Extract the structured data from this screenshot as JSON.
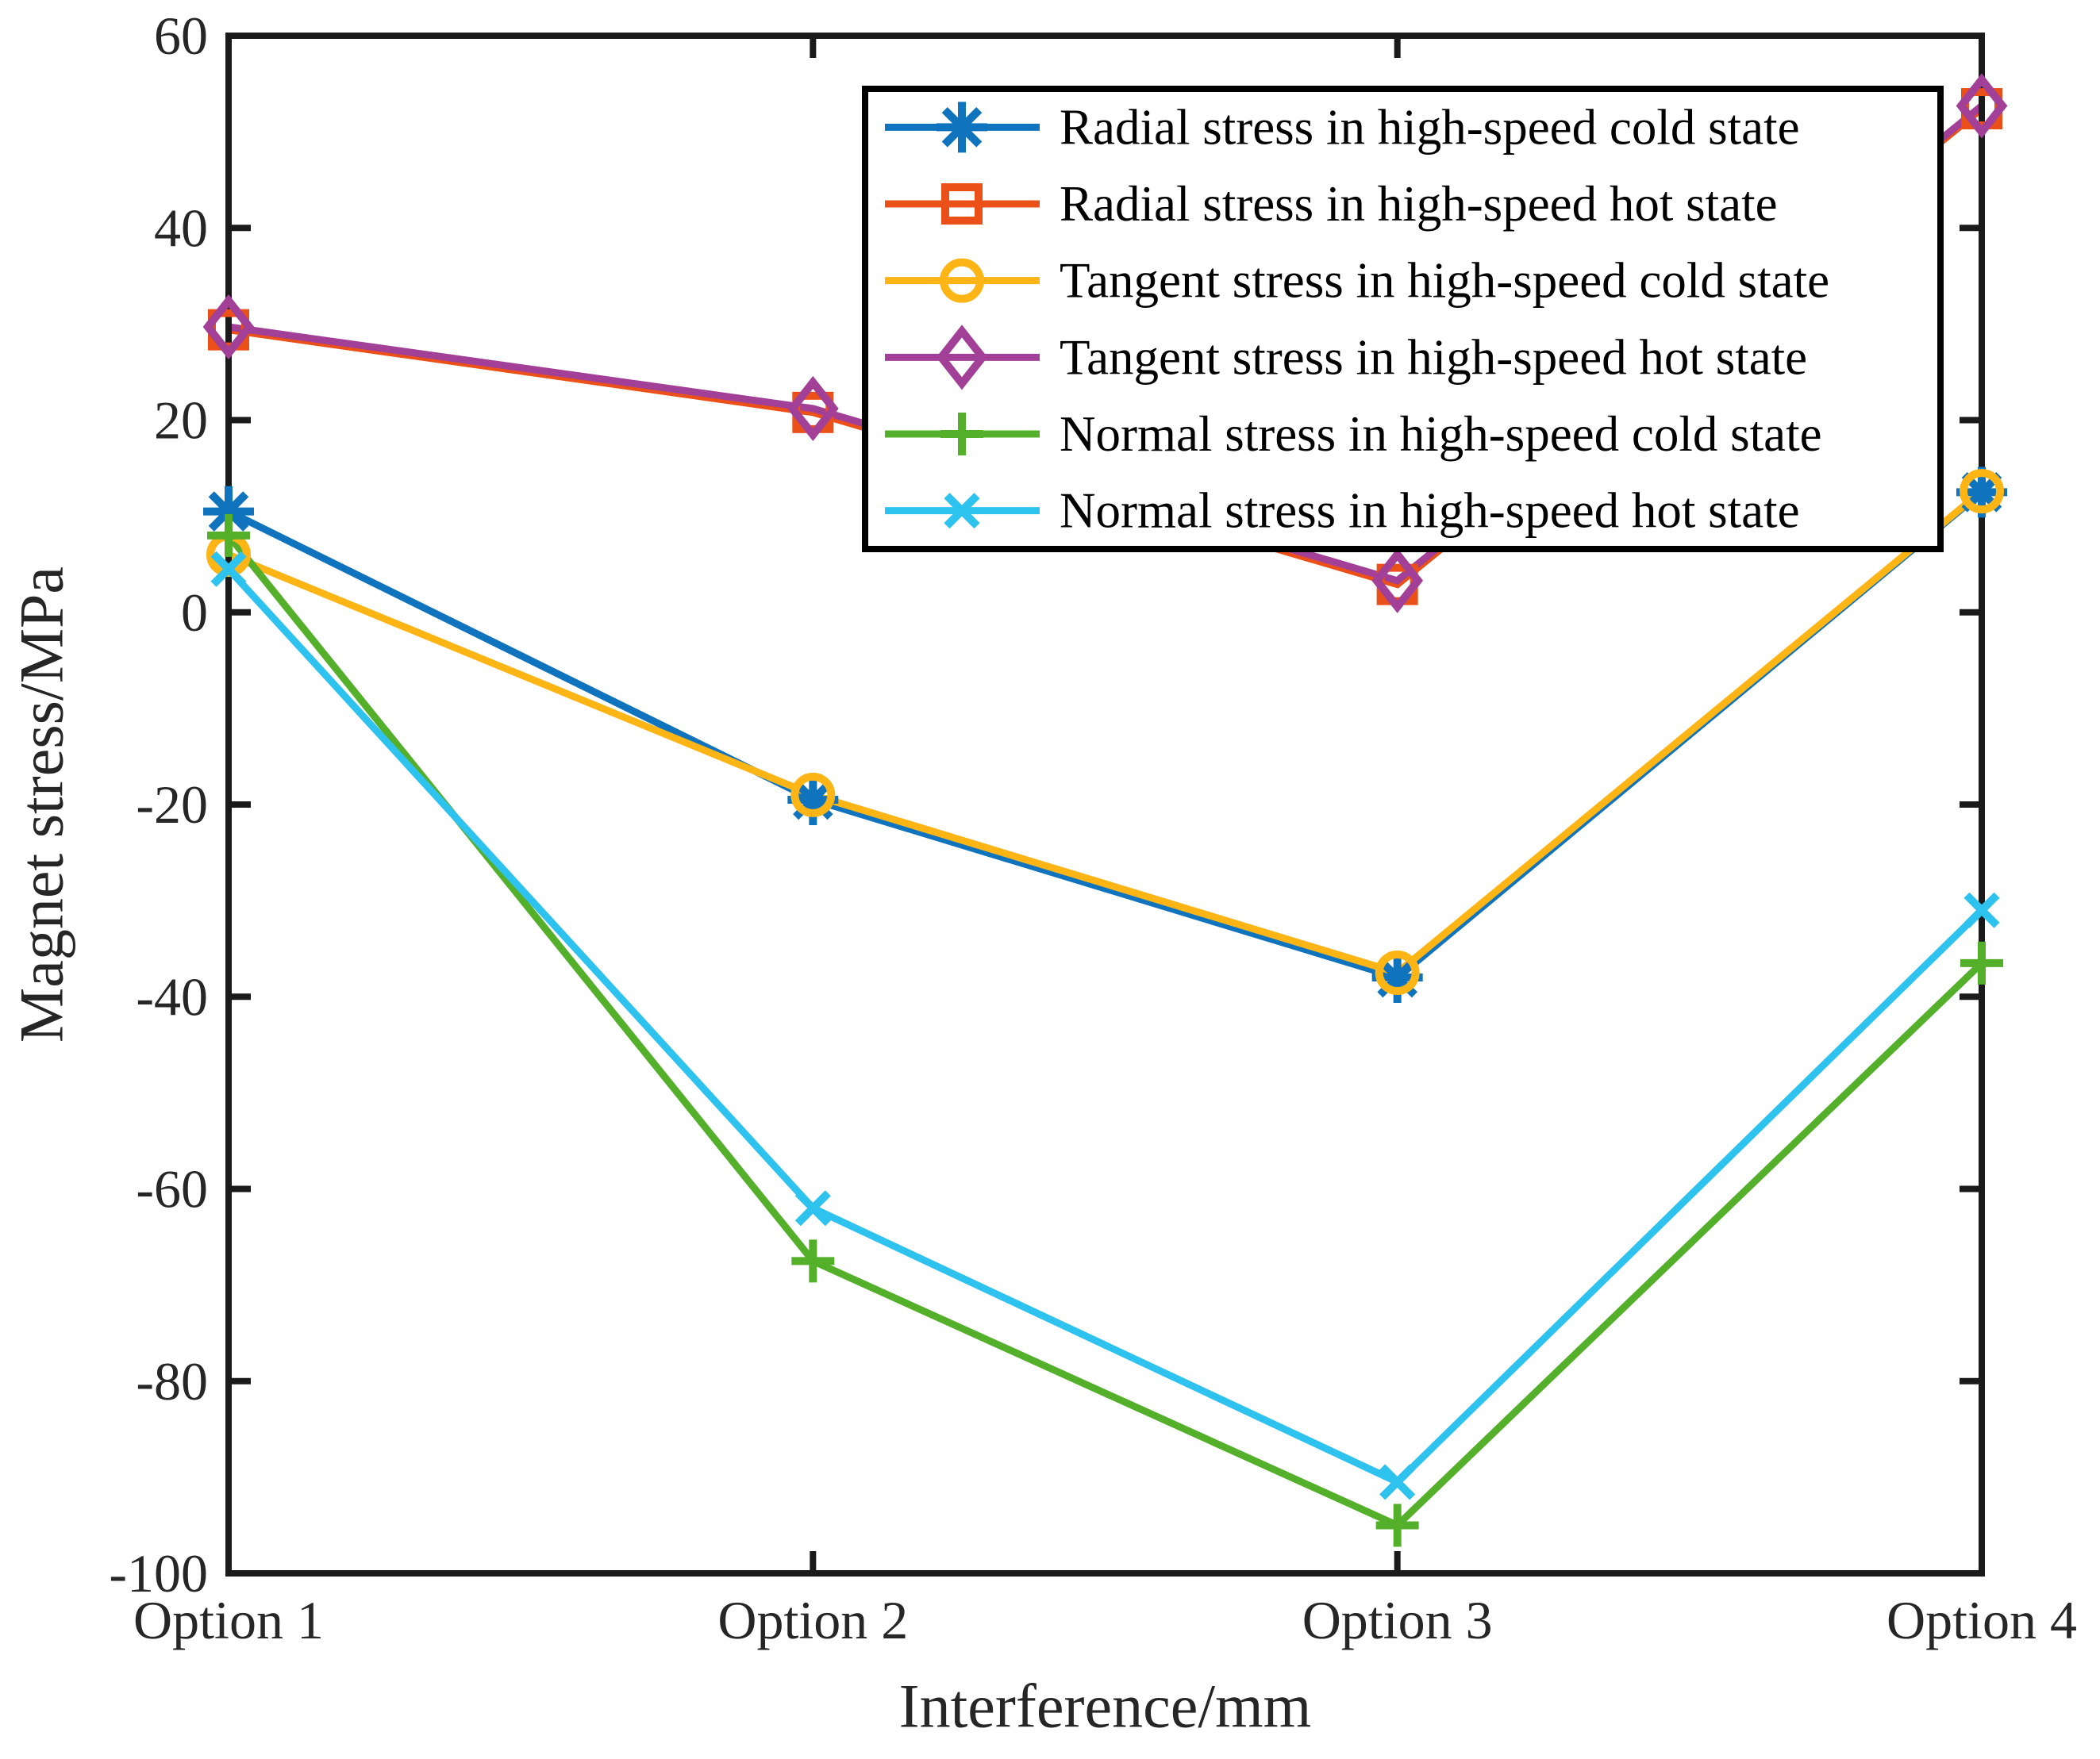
{
  "figure": {
    "background": "#ffffff",
    "axis_color": "#1a1a1a",
    "text_color": "#262626"
  },
  "chart_data": {
    "type": "line",
    "title": "",
    "xlabel": "Interference/mm",
    "ylabel": "Magnet stress/MPa",
    "categories": [
      "Option 1",
      "Option 2",
      "Option 3",
      "Option 4"
    ],
    "ylim": [
      -100,
      60
    ],
    "yticks": [
      60,
      40,
      20,
      0,
      -20,
      -40,
      -60,
      -80,
      -100
    ],
    "grid": false,
    "legend_position": "upper-right-inside",
    "series": [
      {
        "name": "Radial stress in high-speed cold state",
        "color": "#0F74BD",
        "marker": "asterisk",
        "values": [
          10.5,
          -19.5,
          -38,
          12.5
        ]
      },
      {
        "name": "Radial stress in high-speed hot state",
        "color": "#EC5019",
        "marker": "square",
        "values": [
          29.4,
          20.8,
          2.9,
          52.4
        ]
      },
      {
        "name": "Tangent stress in high-speed cold state",
        "color": "#FDB515",
        "marker": "circle",
        "values": [
          6,
          -19,
          -37.5,
          12.6
        ]
      },
      {
        "name": "Tangent stress in high-speed hot state",
        "color": "#A23F97",
        "marker": "diamond",
        "values": [
          29.7,
          21.2,
          3.3,
          52.7
        ]
      },
      {
        "name": "Normal stress in high-speed cold state",
        "color": "#54B02B",
        "marker": "plus",
        "values": [
          8,
          -67.5,
          -95,
          -36.5
        ]
      },
      {
        "name": "Normal stress in high-speed hot state",
        "color": "#2EC2EF",
        "marker": "x",
        "values": [
          4.5,
          -62,
          -90.5,
          -31
        ]
      }
    ]
  }
}
